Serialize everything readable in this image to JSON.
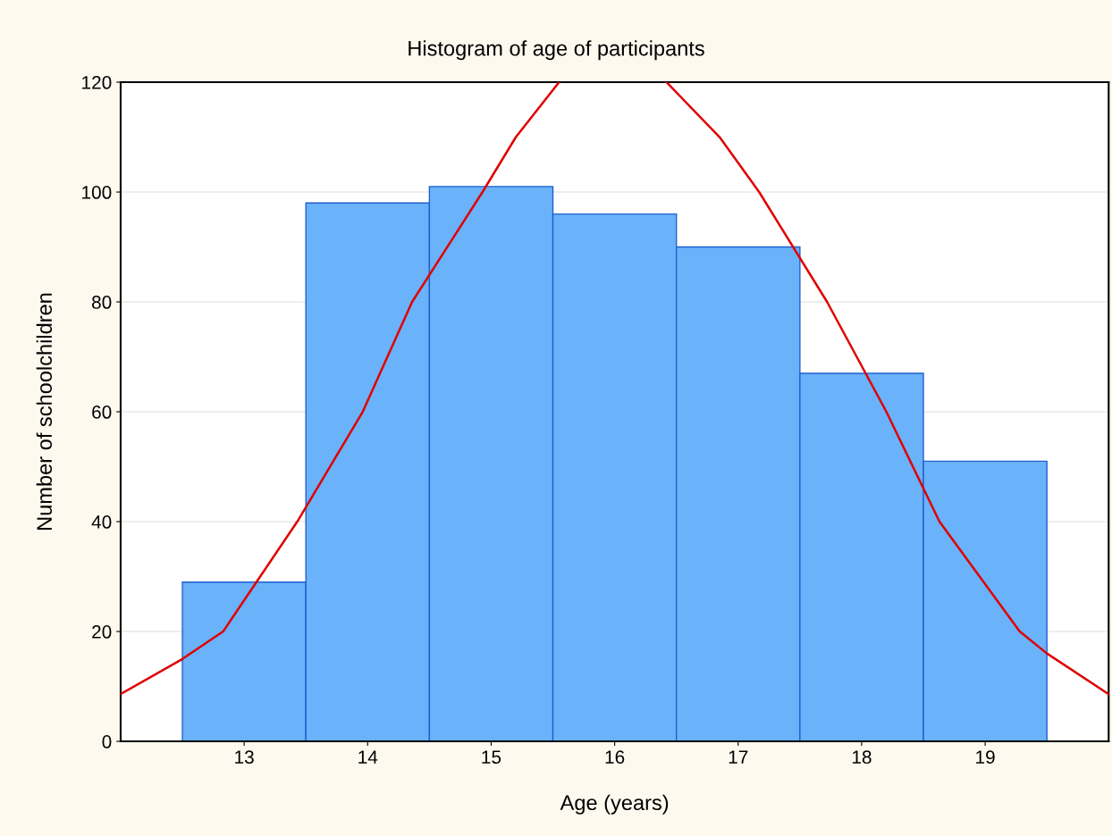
{
  "chart_data": {
    "type": "histogram",
    "title": "Histogram of age of participants",
    "xlabel": "Age (years)",
    "ylabel": "Number of schoolchildren",
    "bins": [
      12.5,
      13.5,
      14.5,
      15.5,
      16.5,
      17.5,
      18.5,
      19.5
    ],
    "values": [
      29,
      98,
      101,
      96,
      90,
      67,
      51
    ],
    "color": "#6ab2fa",
    "series": [
      {
        "type": "line",
        "color": "#e00000",
        "x": [
          12,
          12.5,
          12.83,
          13.43,
          13.96,
          14.36,
          14.93,
          15.2,
          15.55,
          16.0,
          16.42,
          16.85,
          17.17,
          17.72,
          18.2,
          18.63,
          19.28,
          19.5,
          20
        ],
        "values": [
          8.6,
          15,
          20,
          40,
          60,
          80,
          100,
          110,
          120,
          null,
          120,
          110,
          100,
          80,
          60,
          40,
          20,
          16,
          8.6
        ]
      }
    ],
    "xlim": [
      12,
      20
    ],
    "xticks": [
      13,
      14,
      15,
      16,
      17,
      18,
      19
    ],
    "ylim": [
      0,
      120
    ],
    "yticks": [
      0,
      20,
      40,
      60,
      80,
      100,
      120
    ],
    "grid": "y",
    "legend": false
  }
}
